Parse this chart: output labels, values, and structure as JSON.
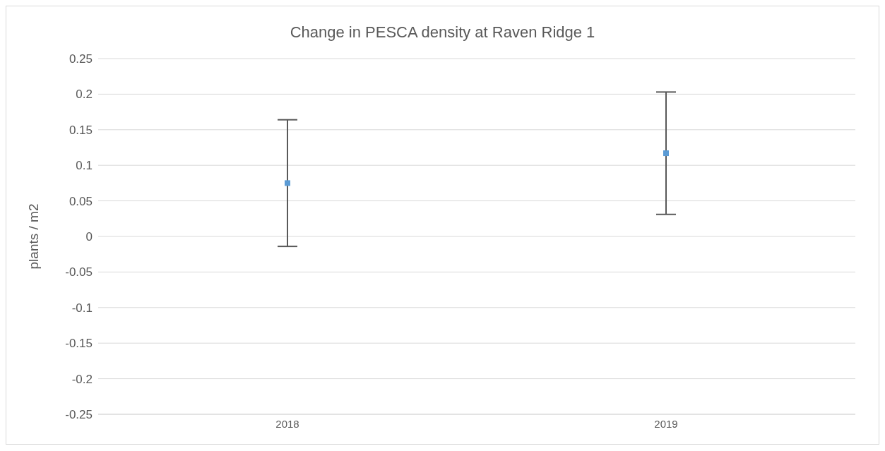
{
  "chart_data": {
    "type": "scatter",
    "title": "Change in PESCA density at Raven Ridge 1",
    "ylabel": "plants / m2",
    "categories": [
      "2018",
      "2019"
    ],
    "series": [
      {
        "color": "#5b9bd5",
        "values": [
          0.075,
          0.117
        ],
        "errors": [
          0.089,
          0.086
        ]
      }
    ],
    "ylim": [
      -0.25,
      0.25
    ],
    "yticks": [
      -0.25,
      -0.2,
      -0.15,
      -0.1,
      -0.05,
      0,
      0.05,
      0.1,
      0.15,
      0.2,
      0.25
    ],
    "grid": "y",
    "marker": "square",
    "legend": false
  }
}
